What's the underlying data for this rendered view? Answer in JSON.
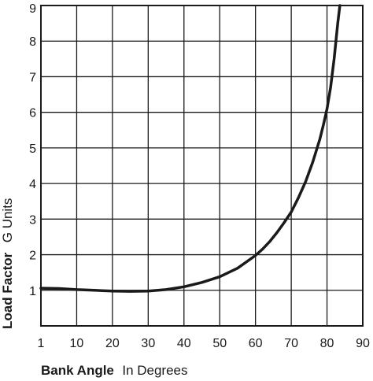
{
  "chart_data": {
    "type": "line",
    "xlabel": {
      "bold": "Bank Angle",
      "normal": "In Degrees"
    },
    "ylabel": {
      "bold": "Load Factor",
      "normal": "G Units"
    },
    "x_ticks": [
      "1",
      "10",
      "20",
      "30",
      "40",
      "50",
      "60",
      "70",
      "80",
      "90"
    ],
    "y_ticks": [
      "1",
      "2",
      "3",
      "4",
      "5",
      "6",
      "7",
      "8",
      "9"
    ],
    "xlim": [
      0,
      90
    ],
    "ylim": [
      0,
      9
    ],
    "grid": true,
    "series": [
      {
        "x": [
          0,
          5,
          10,
          15,
          20,
          25,
          30,
          35,
          40,
          45,
          50,
          55,
          60,
          62,
          64,
          66,
          68,
          70,
          72,
          74,
          76,
          78,
          79,
          80,
          81,
          82,
          82.5,
          83,
          83.6
        ],
        "y": [
          1.06,
          1.05,
          1.02,
          1.0,
          0.98,
          0.97,
          0.98,
          1.02,
          1.1,
          1.22,
          1.38,
          1.62,
          1.98,
          2.16,
          2.37,
          2.62,
          2.9,
          3.2,
          3.6,
          4.05,
          4.6,
          5.25,
          5.65,
          6.1,
          6.7,
          7.5,
          8.0,
          8.5,
          9.0
        ]
      }
    ],
    "line_color": "#1a1a1a"
  }
}
